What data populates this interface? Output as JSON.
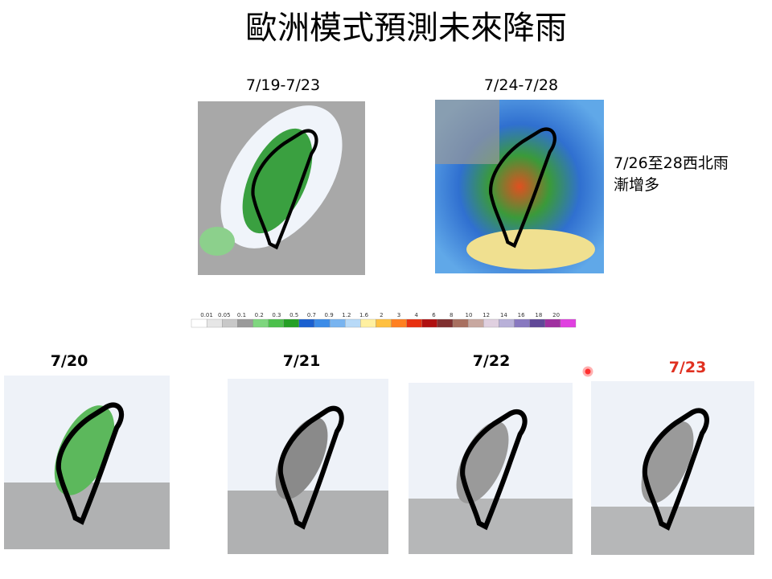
{
  "title": "歐洲模式預測未來降雨",
  "top_panels": [
    {
      "label": "7/19-7/23"
    },
    {
      "label": "7/24-7/28"
    }
  ],
  "note": [
    "7/26至28西北雨",
    "漸增多"
  ],
  "colorbar": {
    "labels": [
      "0.01",
      "0.05",
      "0.1",
      "0.2",
      "0.3",
      "0.5",
      "0.7",
      "0.9",
      "1.2",
      "1.6",
      "2",
      "3",
      "4",
      "6",
      "8",
      "10",
      "12",
      "14",
      "16",
      "18",
      "20"
    ]
  },
  "bottom_panels": [
    {
      "label": "7/20"
    },
    {
      "label": "7/21"
    },
    {
      "label": "7/22"
    },
    {
      "label": "7/23"
    }
  ]
}
